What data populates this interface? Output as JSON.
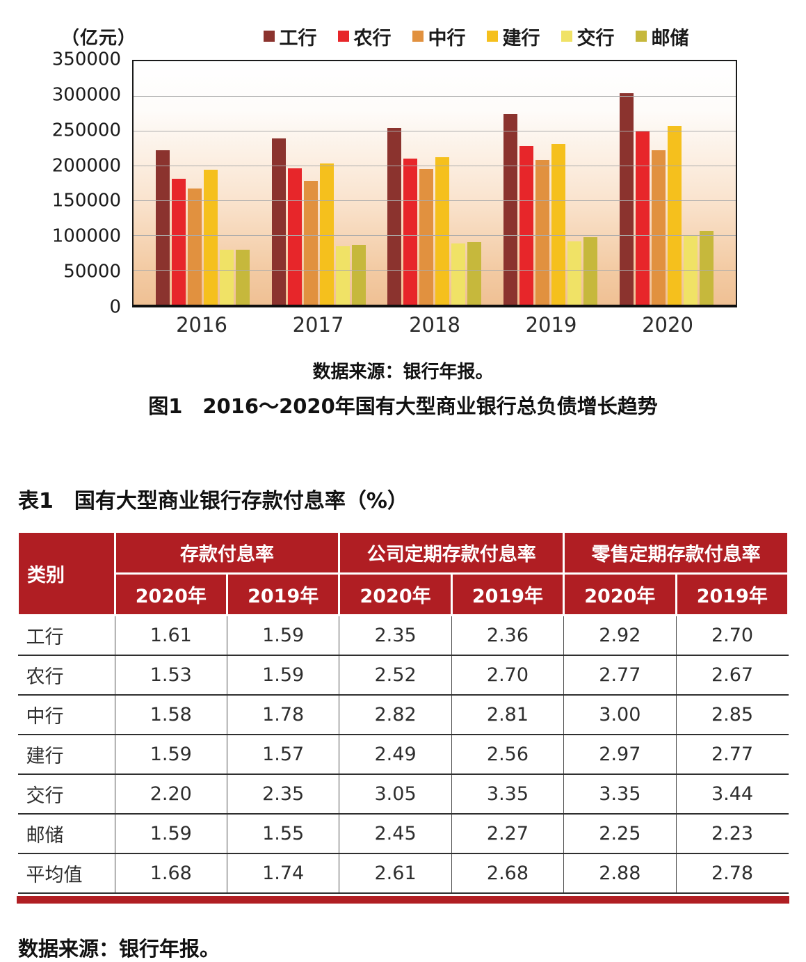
{
  "colors": {
    "header_red": "#B01E23",
    "plot_gradient_bottom": "#EFC094",
    "gridline_gray": "#ABABAB"
  },
  "figure": {
    "unit_label": "（亿元）",
    "source": "数据来源：银行年报。",
    "caption": "图1　2016～2020年国有大型商业银行总负债增长趋势"
  },
  "chart_data": {
    "type": "bar",
    "title": "2016～2020年国有大型商业银行总负债增长趋势",
    "xlabel": "",
    "ylabel": "亿元",
    "ylim": [
      0,
      350000
    ],
    "ytick_step": 50000,
    "grid": true,
    "legend_position": "top",
    "categories": [
      "2016",
      "2017",
      "2018",
      "2019",
      "2020"
    ],
    "series": [
      {
        "name": "工行",
        "color": "#8B332E",
        "values": [
          222000,
          239000,
          254000,
          274000,
          304000
        ]
      },
      {
        "name": "农行",
        "color": "#E7262A",
        "values": [
          181000,
          196000,
          210000,
          228000,
          249000
        ]
      },
      {
        "name": "中行",
        "color": "#E1913F",
        "values": [
          167000,
          178000,
          195000,
          208000,
          222000
        ]
      },
      {
        "name": "建行",
        "color": "#F5C01D",
        "values": [
          194000,
          203000,
          212000,
          231000,
          257000
        ]
      },
      {
        "name": "交行",
        "color": "#F0E266",
        "values": [
          79000,
          84000,
          88000,
          91000,
          99000
        ]
      },
      {
        "name": "邮储",
        "color": "#C6B83C",
        "values": [
          79000,
          86000,
          90000,
          97000,
          106000
        ]
      }
    ]
  },
  "table": {
    "title": "表1　国有大型商业银行存款付息率（%）",
    "corner_header": "类别",
    "group_headers": [
      "存款付息率",
      "公司定期存款付息率",
      "零售定期存款付息率"
    ],
    "sub_headers": [
      "2020年",
      "2019年"
    ],
    "rows": [
      {
        "label": "工行",
        "values": [
          "1.61",
          "1.59",
          "2.35",
          "2.36",
          "2.92",
          "2.70"
        ]
      },
      {
        "label": "农行",
        "values": [
          "1.53",
          "1.59",
          "2.52",
          "2.70",
          "2.77",
          "2.67"
        ]
      },
      {
        "label": "中行",
        "values": [
          "1.58",
          "1.78",
          "2.82",
          "2.81",
          "3.00",
          "2.85"
        ]
      },
      {
        "label": "建行",
        "values": [
          "1.59",
          "1.57",
          "2.49",
          "2.56",
          "2.97",
          "2.77"
        ]
      },
      {
        "label": "交行",
        "values": [
          "2.20",
          "2.35",
          "3.05",
          "3.35",
          "3.35",
          "3.44"
        ]
      },
      {
        "label": "邮储",
        "values": [
          "1.59",
          "1.55",
          "2.45",
          "2.27",
          "2.25",
          "2.23"
        ]
      },
      {
        "label": "平均值",
        "values": [
          "1.68",
          "1.74",
          "2.61",
          "2.68",
          "2.88",
          "2.78"
        ]
      }
    ],
    "source": "数据来源：银行年报。"
  }
}
